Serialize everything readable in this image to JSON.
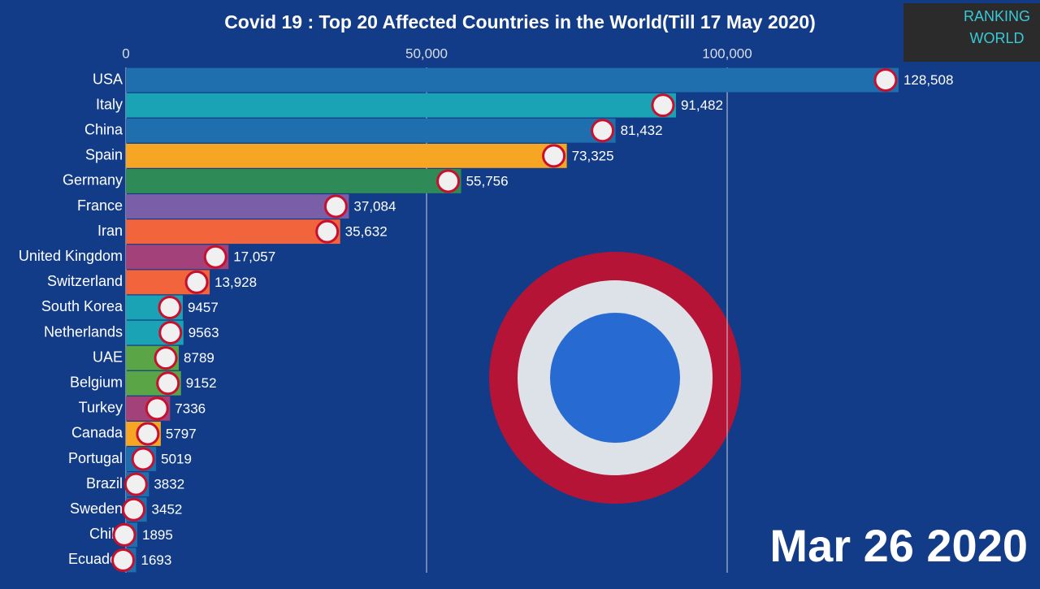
{
  "chart_data": {
    "type": "bar",
    "orientation": "horizontal",
    "title": "Covid 19 : Top 20 Affected Countries in the World(Till 17 May 2020)",
    "date": "Mar 26 2020",
    "logo_lines": [
      "RANKING",
      "WORLD"
    ],
    "categories": [
      "USA",
      "Italy",
      "China",
      "Spain",
      "Germany",
      "France",
      "Iran",
      "United Kingdom",
      "Switzerland",
      "South Korea",
      "Netherlands",
      "UAE",
      "Belgium",
      "Turkey",
      "Canada",
      "Portugal",
      "Brazil",
      "Sweden",
      "Chile",
      "Ecuador"
    ],
    "values": [
      128508,
      91482,
      81432,
      73325,
      55756,
      37084,
      35632,
      17057,
      13928,
      9457,
      9563,
      8789,
      9152,
      7336,
      5797,
      5019,
      3832,
      3452,
      1895,
      1693
    ],
    "value_labels": [
      "128,508",
      "91,482",
      "81,432",
      "73,325",
      "55,756",
      "37,084",
      "35,632",
      "17,057",
      "13,928",
      "9457",
      "9563",
      "8789",
      "9152",
      "7336",
      "5797",
      "5019",
      "3832",
      "3452",
      "1895",
      "1693"
    ],
    "colors": [
      "#1f6fae",
      "#1aa3b5",
      "#1f6fae",
      "#f6a623",
      "#2e8b57",
      "#7a5ea8",
      "#f2643c",
      "#a3417b",
      "#f2643c",
      "#1aa3b5",
      "#1aa3b5",
      "#5aa646",
      "#5aa646",
      "#a3417b",
      "#f6a623",
      "#1f6fae",
      "#1f6fae",
      "#1f6fae",
      "#1f6fae",
      "#1f6fae"
    ],
    "xlim": [
      0,
      150000
    ],
    "xticks": [
      0,
      {
        "value": 50000,
        "label": "50,000"
      },
      {
        "value": 100000,
        "label": "100,000"
      }
    ],
    "grid": true
  }
}
